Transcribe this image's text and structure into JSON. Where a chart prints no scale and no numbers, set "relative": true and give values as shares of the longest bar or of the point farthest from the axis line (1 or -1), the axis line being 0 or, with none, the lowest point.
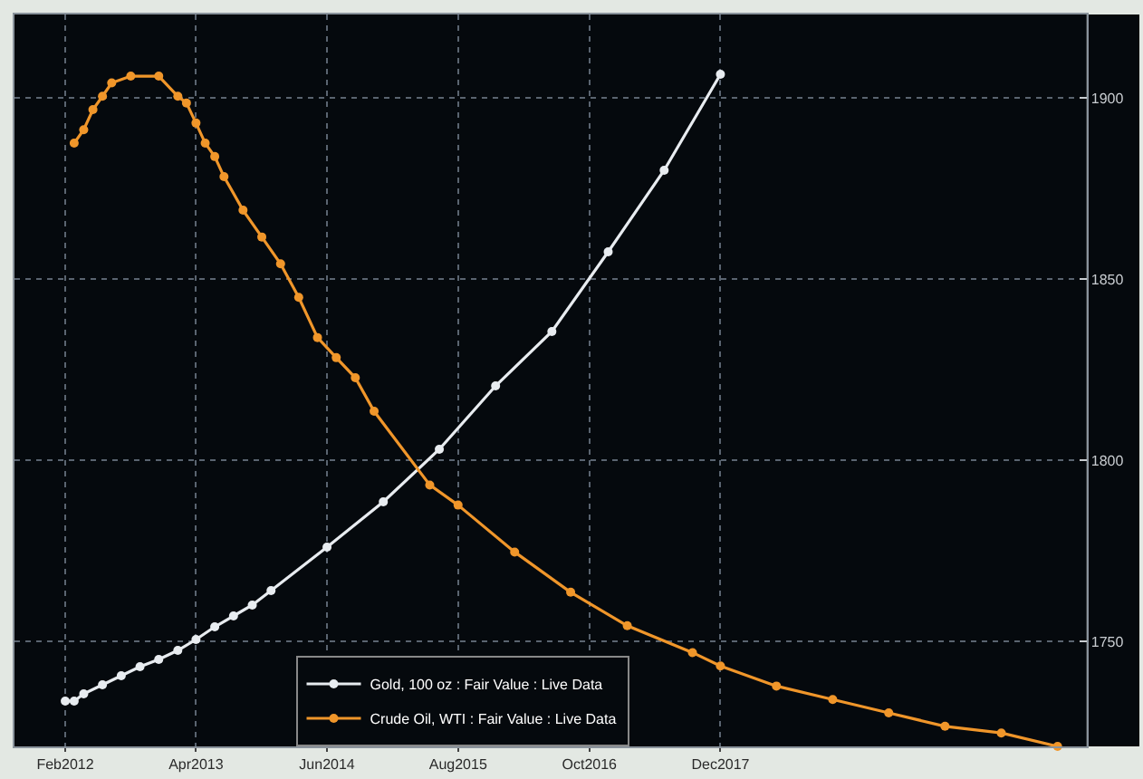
{
  "chart_data": [
    {
      "type": "line",
      "marker": "circle",
      "grid": true,
      "legend": "bottom",
      "xlim": [
        "2011-08-20",
        "2021-03-05"
      ],
      "xticks": [
        {
          "value": "2012-02-01",
          "label": "Feb2012"
        },
        {
          "value": "2013-04-01",
          "label": "Apr2013"
        },
        {
          "value": "2014-06-01",
          "label": "Jun2014"
        },
        {
          "value": "2015-08-01",
          "label": "Aug2015"
        },
        {
          "value": "2016-10-01",
          "label": "Oct2016"
        },
        {
          "value": "2017-12-01",
          "label": "Dec2017"
        }
      ],
      "ylim": [
        1721,
        1923
      ],
      "yticks": [
        1750,
        1800,
        1850,
        1900
      ],
      "series": [
        {
          "name": "Gold, 100 oz : Fair Value : Live Data",
          "color": "#e8ecf0",
          "x": [
            "2012-02",
            "2012-03",
            "2012-04",
            "2012-06",
            "2012-08",
            "2012-10",
            "2012-12",
            "2013-02",
            "2013-04",
            "2013-06",
            "2013-08",
            "2013-10",
            "2013-12",
            "2014-06",
            "2014-12",
            "2015-06",
            "2015-12",
            "2016-06",
            "2016-12",
            "2017-06",
            "2017-12"
          ],
          "values": [
            1733.5,
            1733.5,
            1735.5,
            1738,
            1740.5,
            1743,
            1745,
            1747.5,
            1750.5,
            1754,
            1757,
            1760,
            1764,
            1776,
            1788.5,
            1803,
            1820.5,
            1835.5,
            1857.5,
            1880,
            1906.5
          ]
        }
      ]
    },
    {
      "type": "line",
      "marker": "circle",
      "relative": true,
      "legend": "bottom",
      "tick_labels": false,
      "xlim": [
        "2011-08-20",
        "2021-03-05"
      ],
      "series": [
        {
          "name": "Crude Oil, WTI : Fair Value : Live Data",
          "color": "#f0962a",
          "x": [
            "2012-03",
            "2012-04",
            "2012-05",
            "2012-06",
            "2012-07",
            "2012-09",
            "2012-12",
            "2013-02",
            "2013-03",
            "2013-04",
            "2013-05",
            "2013-06",
            "2013-07",
            "2013-09",
            "2013-11",
            "2014-01",
            "2014-03",
            "2014-05",
            "2014-07",
            "2014-09",
            "2014-11",
            "2015-05",
            "2015-08",
            "2016-02",
            "2016-08",
            "2017-02",
            "2017-09",
            "2017-12",
            "2018-06",
            "2018-12",
            "2019-06",
            "2019-12",
            "2020-06",
            "2020-12"
          ],
          "values": [
            0.9,
            0.92,
            0.95,
            0.97,
            0.99,
            1,
            1,
            0.97,
            0.96,
            0.93,
            0.9,
            0.88,
            0.85,
            0.8,
            0.76,
            0.72,
            0.67,
            0.61,
            0.58,
            0.55,
            0.5,
            0.39,
            0.36,
            0.29,
            0.23,
            0.18,
            0.14,
            0.12,
            0.09,
            0.07,
            0.05,
            0.03,
            0.02,
            0
          ]
        }
      ]
    }
  ]
}
